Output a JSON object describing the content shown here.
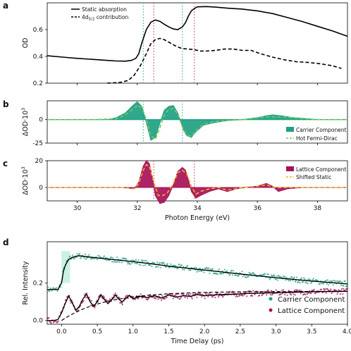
{
  "chart_data": [
    {
      "panel": "a",
      "type": "line",
      "ylabel": "OD",
      "xlim": [
        29,
        39
      ],
      "ylim": [
        0.2,
        0.8
      ],
      "yticks": [
        0.2,
        0.4,
        0.6
      ],
      "grid": false,
      "legend_position": "top-left",
      "vlines": {
        "teal": [
          32.2,
          33.5
        ],
        "pink": [
          32.55,
          33.9
        ]
      },
      "series": [
        {
          "name": "Static absorption",
          "style": "solid",
          "x": [
            29.0,
            29.5,
            30.0,
            30.5,
            31.0,
            31.3,
            31.6,
            31.8,
            31.95,
            32.05,
            32.15,
            32.3,
            32.45,
            32.6,
            32.75,
            32.9,
            33.05,
            33.2,
            33.35,
            33.5,
            33.6,
            33.7,
            33.8,
            33.9,
            34.0,
            34.3,
            34.6,
            35.0,
            35.5,
            36.0,
            36.5,
            37.0,
            37.5,
            38.0,
            38.5,
            39.0
          ],
          "y": [
            0.405,
            0.395,
            0.385,
            0.378,
            0.37,
            0.366,
            0.364,
            0.37,
            0.385,
            0.42,
            0.5,
            0.6,
            0.655,
            0.672,
            0.662,
            0.64,
            0.62,
            0.605,
            0.6,
            0.62,
            0.65,
            0.7,
            0.74,
            0.757,
            0.77,
            0.772,
            0.768,
            0.76,
            0.753,
            0.74,
            0.72,
            0.69,
            0.66,
            0.625,
            0.59,
            0.55
          ]
        },
        {
          "name": "4d5/2 contribution",
          "style": "dashed",
          "x": [
            31.0,
            31.4,
            31.7,
            31.9,
            32.1,
            32.3,
            32.45,
            32.6,
            32.75,
            32.9,
            33.1,
            33.3,
            33.5,
            33.7,
            33.9,
            34.1,
            34.3,
            34.6,
            34.9,
            35.2,
            35.5,
            35.8,
            36.1,
            36.5,
            36.9,
            37.3,
            37.7,
            38.1,
            38.5,
            38.8
          ],
          "y": [
            0.2,
            0.205,
            0.22,
            0.26,
            0.33,
            0.42,
            0.495,
            0.525,
            0.535,
            0.525,
            0.5,
            0.475,
            0.458,
            0.455,
            0.45,
            0.44,
            0.44,
            0.445,
            0.455,
            0.455,
            0.445,
            0.445,
            0.42,
            0.395,
            0.375,
            0.36,
            0.355,
            0.345,
            0.33,
            0.31
          ]
        }
      ]
    },
    {
      "panel": "b",
      "type": "area",
      "ylabel": "ΔOD·10³",
      "xlim": [
        29,
        39
      ],
      "ylim": [
        -25,
        20
      ],
      "yticks": [
        -25,
        0
      ],
      "grid": false,
      "legend_position": "lower-right",
      "vlines": {
        "teal": [
          32.2,
          33.5
        ]
      },
      "series": [
        {
          "name": "Carrier Component",
          "style": "filled",
          "x": [
            29.0,
            30.0,
            31.0,
            31.3,
            31.6,
            31.85,
            32.0,
            32.15,
            32.3,
            32.45,
            32.6,
            32.75,
            32.9,
            33.05,
            33.2,
            33.35,
            33.45,
            33.55,
            33.65,
            33.8,
            33.95,
            34.2,
            34.6,
            35.0,
            35.5,
            36.0,
            36.3,
            36.5,
            36.8,
            37.2,
            37.6,
            38.0,
            38.5,
            39.0
          ],
          "y": [
            0,
            0,
            0,
            2,
            7,
            15,
            19,
            14,
            -3,
            -22,
            -19,
            -4,
            10,
            14,
            15,
            7,
            -2,
            -12,
            -17,
            -19,
            -13,
            -6,
            -3,
            -1,
            0,
            2,
            4,
            5,
            4,
            2,
            1,
            0,
            0,
            0
          ]
        },
        {
          "name": "Hot Fermi-Dirac",
          "style": "dashed",
          "x": [
            29.0,
            30.5,
            31.3,
            31.6,
            31.85,
            32.0,
            32.15,
            32.3,
            32.45,
            32.6,
            32.75,
            32.9,
            33.05,
            33.2,
            33.35,
            33.5,
            33.65,
            33.8,
            33.95,
            34.2,
            34.6,
            35.0,
            35.5,
            36.0,
            36.4,
            36.8,
            37.2,
            37.6,
            38.0,
            39.0
          ],
          "y": [
            0,
            0,
            1,
            5,
            11,
            15,
            13,
            0,
            -17,
            -21,
            -9,
            5,
            11,
            12,
            6,
            -8,
            -16,
            -18,
            -12,
            -5,
            -2,
            -1,
            0,
            2,
            3,
            3,
            2,
            1,
            0,
            0
          ]
        }
      ]
    },
    {
      "panel": "c",
      "type": "area",
      "ylabel": "ΔOD·10³",
      "xlabel": "Photon Energy (eV)",
      "xlim": [
        29,
        39
      ],
      "ylim": [
        -10,
        20
      ],
      "xticks": [
        30,
        32,
        34,
        36,
        38
      ],
      "yticks": [
        0,
        20
      ],
      "grid": false,
      "legend_position": "upper-right",
      "vlines": {
        "pink": [
          32.55,
          33.9
        ]
      },
      "series": [
        {
          "name": "Lattice Component",
          "style": "filled",
          "x": [
            29.0,
            30.5,
            31.5,
            31.9,
            32.05,
            32.2,
            32.3,
            32.4,
            32.5,
            32.6,
            32.75,
            32.9,
            33.05,
            33.2,
            33.35,
            33.5,
            33.6,
            33.7,
            33.8,
            33.95,
            34.1,
            34.4,
            34.7,
            35.0,
            35.3,
            35.6,
            36.0,
            36.3,
            36.5,
            36.7,
            37.0,
            37.5,
            38.0,
            38.5,
            39.0
          ],
          "y": [
            0,
            0,
            0,
            -1,
            4,
            16,
            20,
            18,
            8,
            -6,
            -12,
            -11,
            -6,
            2,
            12,
            15,
            13,
            6,
            -3,
            -8,
            -6,
            -3,
            -1,
            -3,
            -1,
            0,
            1,
            3,
            1,
            -3,
            -1,
            0,
            0,
            0,
            0
          ]
        },
        {
          "name": "Shifted Static",
          "style": "dashed",
          "x": [
            29.0,
            30.5,
            31.5,
            31.9,
            32.05,
            32.2,
            32.3,
            32.4,
            32.55,
            32.7,
            32.85,
            33.0,
            33.2,
            33.35,
            33.5,
            33.65,
            33.8,
            33.95,
            34.1,
            34.4,
            34.7,
            35.0,
            35.5,
            36.0,
            36.3,
            36.6,
            37.0,
            38.0,
            39.0
          ],
          "y": [
            0,
            0,
            0,
            -1,
            3,
            13,
            17,
            16,
            4,
            -6,
            -6,
            -4,
            3,
            11,
            13,
            10,
            1,
            -5,
            -3,
            -1,
            0,
            -2,
            0,
            1,
            2,
            0,
            0,
            0,
            0
          ]
        }
      ]
    },
    {
      "panel": "d",
      "type": "line",
      "ylabel": "Rel. Intensity",
      "xlabel": "Time Delay (ps)",
      "xlim": [
        -0.2,
        4.0
      ],
      "ylim": [
        -0.02,
        0.42
      ],
      "xticks": [
        0.0,
        0.5,
        1.0,
        1.5,
        2.0,
        2.5,
        3.0,
        3.5,
        4.0
      ],
      "yticks": [
        0.0,
        0.2
      ],
      "grid": false,
      "legend_position": "lower-right",
      "series": [
        {
          "name": "Carrier Component",
          "style": "scatter",
          "x": [
            -0.2,
            -0.05,
            0.0,
            0.03,
            0.06,
            0.1,
            0.15,
            0.2,
            0.25,
            0.3,
            0.4,
            0.5,
            0.6,
            0.8,
            1.0,
            1.2,
            1.5,
            2.0,
            2.5,
            3.0,
            3.5,
            4.0
          ],
          "y": [
            0.165,
            0.165,
            0.2,
            0.27,
            0.3,
            0.325,
            0.337,
            0.343,
            0.345,
            0.343,
            0.338,
            0.334,
            0.33,
            0.322,
            0.314,
            0.305,
            0.29,
            0.269,
            0.248,
            0.228,
            0.21,
            0.195
          ]
        },
        {
          "name": "Lattice Component",
          "style": "scatter",
          "x": [
            -0.2,
            -0.1,
            -0.05,
            0.0,
            0.05,
            0.1,
            0.15,
            0.2,
            0.25,
            0.3,
            0.35,
            0.4,
            0.45,
            0.5,
            0.55,
            0.6,
            0.65,
            0.7,
            0.75,
            0.8,
            0.85,
            0.9,
            0.95,
            1.0,
            1.1,
            1.2,
            1.3,
            1.4,
            1.5,
            1.6,
            1.7,
            1.8,
            1.9,
            2.0,
            2.2,
            2.4,
            2.6,
            2.8,
            3.0,
            3.2,
            3.4,
            3.6,
            3.8,
            4.0
          ],
          "y": [
            0.0,
            0.0,
            0.005,
            0.04,
            0.09,
            0.13,
            0.095,
            0.055,
            0.075,
            0.115,
            0.14,
            0.1,
            0.075,
            0.1,
            0.138,
            0.112,
            0.09,
            0.11,
            0.136,
            0.114,
            0.098,
            0.118,
            0.134,
            0.116,
            0.128,
            0.122,
            0.132,
            0.12,
            0.136,
            0.124,
            0.132,
            0.128,
            0.138,
            0.132,
            0.138,
            0.14,
            0.144,
            0.146,
            0.148,
            0.15,
            0.152,
            0.154,
            0.155,
            0.156
          ]
        }
      ]
    }
  ],
  "figure": {
    "panels": [
      "a",
      "b",
      "c",
      "d"
    ],
    "colors": {
      "teal": "#1fa083",
      "teal_light": "#6fd3b0",
      "magenta": "#a8105a",
      "green_dash": "#77cc55",
      "orange_dash": "#f0b020",
      "vline_teal": "#77c3a6",
      "vline_pink": "#e0708a"
    }
  },
  "legends": {
    "a": [
      "Static absorption",
      "4d5/2 contribution"
    ],
    "b": [
      "Carrier Component",
      "Hot Fermi-Dirac"
    ],
    "c": [
      "Lattice Component",
      "Shifted Static"
    ],
    "d": [
      "Carrier Component",
      "Lattice Component"
    ]
  }
}
